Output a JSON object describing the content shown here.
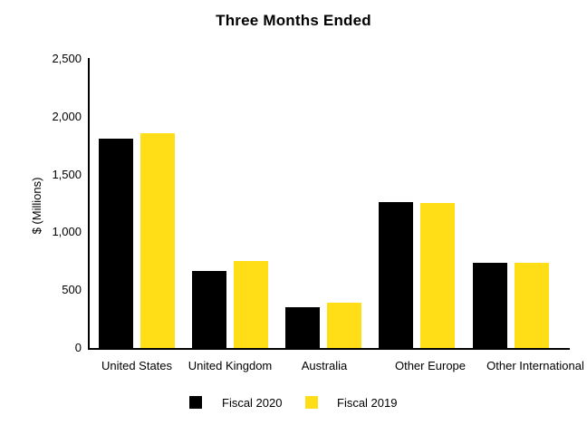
{
  "title": "Three Months Ended",
  "y_axis": {
    "label": "$ (Millions)",
    "tick_labels": [
      "0",
      "500",
      "1,000",
      "1,500",
      "2,000",
      "2,500"
    ]
  },
  "legend": {
    "items": [
      {
        "label": "Fiscal 2020",
        "color": "#000000"
      },
      {
        "label": "Fiscal 2019",
        "color": "#FFDE17"
      }
    ]
  },
  "chart_data": {
    "type": "bar",
    "title": "Three Months Ended",
    "xlabel": "",
    "ylabel": "$ (Millions)",
    "ylim": [
      0,
      2500
    ],
    "yticks": [
      0,
      500,
      1000,
      1500,
      2000,
      2500
    ],
    "categories": [
      "United States",
      "United Kingdom",
      "Australia",
      "Other Europe",
      "Other International"
    ],
    "series": [
      {
        "name": "Fiscal 2020",
        "color": "#000000",
        "values": [
          1810,
          670,
          355,
          1260,
          740
        ]
      },
      {
        "name": "Fiscal 2019",
        "color": "#FFDE17",
        "values": [
          1860,
          755,
          390,
          1255,
          735
        ]
      }
    ],
    "legend_position": "bottom",
    "grid": false
  }
}
